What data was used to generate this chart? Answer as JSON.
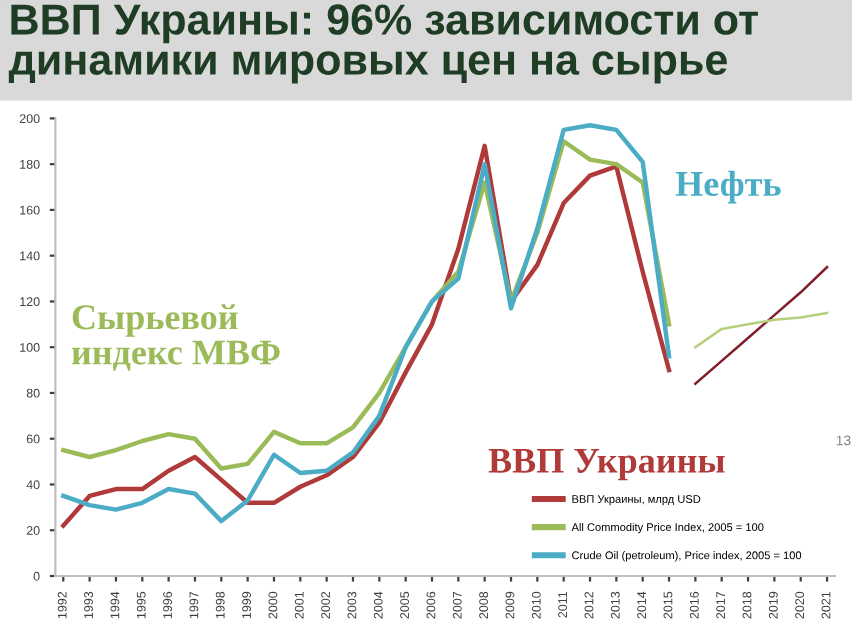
{
  "chart_data": {
    "type": "line",
    "title": "ВВП Украины: 96% зависимости от динамики мировых цен на сырье",
    "categories": [
      "1992",
      "1993",
      "1994",
      "1995",
      "1996",
      "1997",
      "1998",
      "1999",
      "2000",
      "2001",
      "2002",
      "2003",
      "2004",
      "2005",
      "2006",
      "2007",
      "2008",
      "2009",
      "2010",
      "2011",
      "2012",
      "2013",
      "2014",
      "2015",
      "2016",
      "2017",
      "2018",
      "2019",
      "2020",
      "2021"
    ],
    "series": [
      {
        "name": "ВВП Украины, млрд USD",
        "color": "#b03a3a",
        "values": [
          22,
          35,
          38,
          38,
          46,
          52,
          42,
          32,
          32,
          39,
          44,
          52,
          67,
          89,
          110,
          143,
          188,
          120,
          136,
          163,
          175,
          179,
          133,
          90,
          null,
          null,
          null,
          null,
          null,
          null
        ]
      },
      {
        "name": "All Commodity Price Index, 2005 = 100",
        "color": "#9bbb59",
        "values": [
          55,
          52,
          55,
          59,
          62,
          60,
          47,
          49,
          63,
          58,
          58,
          65,
          80,
          100,
          120,
          133,
          172,
          120,
          150,
          190,
          182,
          180,
          172,
          110,
          null,
          null,
          null,
          null,
          null,
          null
        ]
      },
      {
        "name": "Crude Oil (petroleum), Price index, 2005 = 100",
        "color": "#4bacc6",
        "values": [
          35,
          31,
          29,
          32,
          38,
          36,
          24,
          33,
          53,
          45,
          46,
          54,
          70,
          100,
          120,
          130,
          180,
          117,
          152,
          195,
          197,
          195,
          181,
          96,
          null,
          null,
          null,
          null,
          null,
          null
        ]
      },
      {
        "color": "#7f1f2a",
        "values": [
          null,
          null,
          null,
          null,
          null,
          null,
          null,
          null,
          null,
          null,
          null,
          null,
          null,
          null,
          null,
          null,
          null,
          null,
          null,
          null,
          null,
          null,
          null,
          null,
          84,
          94,
          104,
          114,
          124,
          135
        ]
      },
      {
        "color": "#b5cf7f",
        "values": [
          null,
          null,
          null,
          null,
          null,
          null,
          null,
          null,
          null,
          null,
          null,
          null,
          null,
          null,
          null,
          null,
          null,
          null,
          null,
          null,
          null,
          null,
          null,
          null,
          100,
          108,
          110,
          112,
          113,
          115
        ]
      }
    ],
    "ylim": [
      0,
      200
    ],
    "yticks": [
      0,
      20,
      40,
      60,
      80,
      100,
      120,
      140,
      160,
      180,
      200
    ],
    "grid": false,
    "legend": "bottom right",
    "marker": "none",
    "line_style": "solid",
    "annotations": [
      "Сырьевой\nиндекс МВФ",
      "Нефть",
      "ВВП Украины",
      "13"
    ]
  }
}
